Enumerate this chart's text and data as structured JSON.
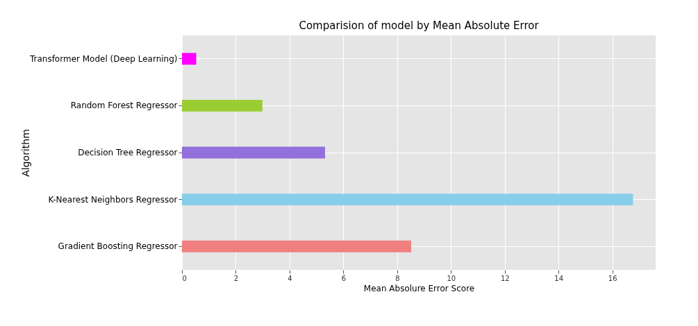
{
  "chart_data": {
    "type": "bar",
    "orientation": "horizontal",
    "title": "Comparision of model by Mean Absolute Error",
    "xlabel": "Mean Absolure Error Score",
    "ylabel": "Algorithm",
    "categories": [
      "Transformer Model (Deep Learning)",
      "Random Forest Regressor",
      "Decision Tree Regressor",
      "K-Nearest Neighbors Regressor",
      "Gradient Boosting Regressor"
    ],
    "values": [
      0.53,
      2.99,
      5.32,
      16.77,
      8.52
    ],
    "colors": [
      "#ff00ff",
      "#9acd32",
      "#9370db",
      "#87ceeb",
      "#f08080"
    ],
    "xlim": [
      0,
      17.61
    ],
    "xticks": [
      0,
      2,
      4,
      6,
      8,
      10,
      12,
      14,
      16
    ],
    "grid": true
  }
}
